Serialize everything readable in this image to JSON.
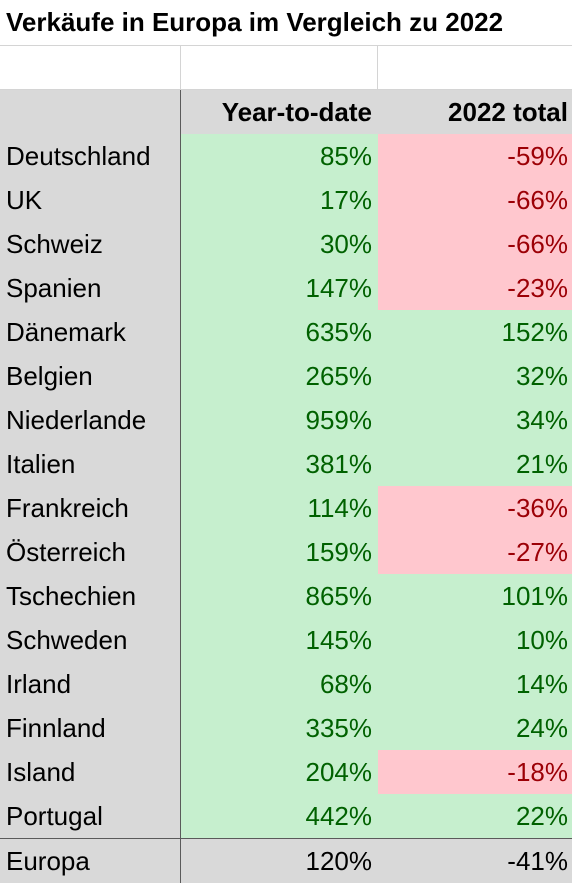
{
  "title": "Verkäufe in Europa im Vergleich zu 2022",
  "columns": {
    "name": "",
    "ytd": "Year-to-date",
    "total": "2022 total"
  },
  "colors": {
    "positive_bg": "#c6efce",
    "positive_text": "#006100",
    "negative_bg": "#ffc7ce",
    "negative_text": "#9c0006",
    "header_bg": "#d9d9d9"
  },
  "rows": [
    {
      "country": "Deutschland",
      "ytd": "85%",
      "total": "-59%"
    },
    {
      "country": "UK",
      "ytd": "17%",
      "total": "-66%"
    },
    {
      "country": "Schweiz",
      "ytd": "30%",
      "total": "-66%"
    },
    {
      "country": "Spanien",
      "ytd": "147%",
      "total": "-23%"
    },
    {
      "country": "Dänemark",
      "ytd": "635%",
      "total": "152%"
    },
    {
      "country": "Belgien",
      "ytd": "265%",
      "total": "32%"
    },
    {
      "country": "Niederlande",
      "ytd": "959%",
      "total": "34%"
    },
    {
      "country": "Italien",
      "ytd": "381%",
      "total": "21%"
    },
    {
      "country": "Frankreich",
      "ytd": "114%",
      "total": "-36%"
    },
    {
      "country": "Österreich",
      "ytd": "159%",
      "total": "-27%"
    },
    {
      "country": "Tschechien",
      "ytd": "865%",
      "total": "101%"
    },
    {
      "country": "Schweden",
      "ytd": "145%",
      "total": "10%"
    },
    {
      "country": "Irland",
      "ytd": "68%",
      "total": "14%"
    },
    {
      "country": "Finnland",
      "ytd": "335%",
      "total": "24%"
    },
    {
      "country": "Island",
      "ytd": "204%",
      "total": "-18%"
    },
    {
      "country": "Portugal",
      "ytd": "442%",
      "total": "22%"
    }
  ],
  "footer": {
    "country": "Europa",
    "ytd": "120%",
    "total": "-41%"
  }
}
